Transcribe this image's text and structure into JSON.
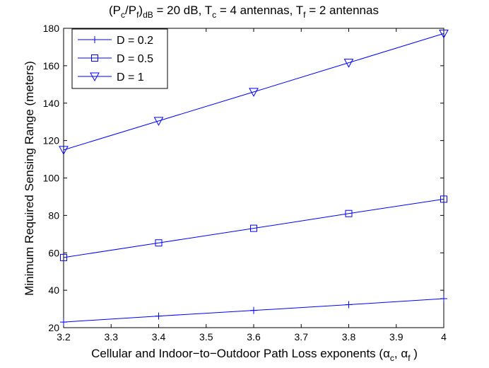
{
  "chart_data": {
    "type": "line",
    "title": "(Pc/Pf)dB = 20 dB, Tc = 4 antennas, Tf = 2 antennas",
    "title_parts": {
      "p_open": "(P",
      "c_sub": "c",
      "slash_p": "/P",
      "f_sub": "f",
      "close": ")",
      "db_sub": "dB",
      "eq": " = 20 dB, T",
      "tc_sub": "c",
      "tc_rest": " = 4 antennas, T",
      "tf_sub": "f",
      "tf_rest": " = 2 antennas"
    },
    "xlabel": "Cellular and Indoor-to-Outdoor Path Loss exponents (αc, αf )",
    "xlabel_parts": {
      "main": "Cellular and Indoor−to−Outdoor Path Loss exponents (α",
      "c_sub": "c",
      "mid": ", α",
      "f_sub": "f",
      "end": " )"
    },
    "ylabel": "Minimum Required Sensing Range (meters)",
    "xlim": [
      3.2,
      4.0
    ],
    "ylim": [
      20,
      180
    ],
    "xticks": [
      "3.2",
      "3.3",
      "3.4",
      "3.5",
      "3.6",
      "3.7",
      "3.8",
      "3.9",
      "4"
    ],
    "yticks": [
      "20",
      "40",
      "60",
      "80",
      "100",
      "120",
      "140",
      "160",
      "180"
    ],
    "grid": false,
    "legend_position": "top-left",
    "line_color": "#0000ff",
    "x": [
      3.2,
      3.4,
      3.6,
      3.8,
      4.0
    ],
    "series": [
      {
        "name": "D = 0.2",
        "marker": "plus",
        "values": [
          23,
          26.2,
          29.2,
          32.3,
          35.5
        ]
      },
      {
        "name": "D = 0.5",
        "marker": "square",
        "values": [
          57.5,
          65.3,
          73.1,
          81.0,
          88.7
        ]
      },
      {
        "name": "D = 1",
        "marker": "triangle-down",
        "values": [
          115,
          130.5,
          146,
          161.6,
          177.2
        ]
      }
    ]
  }
}
